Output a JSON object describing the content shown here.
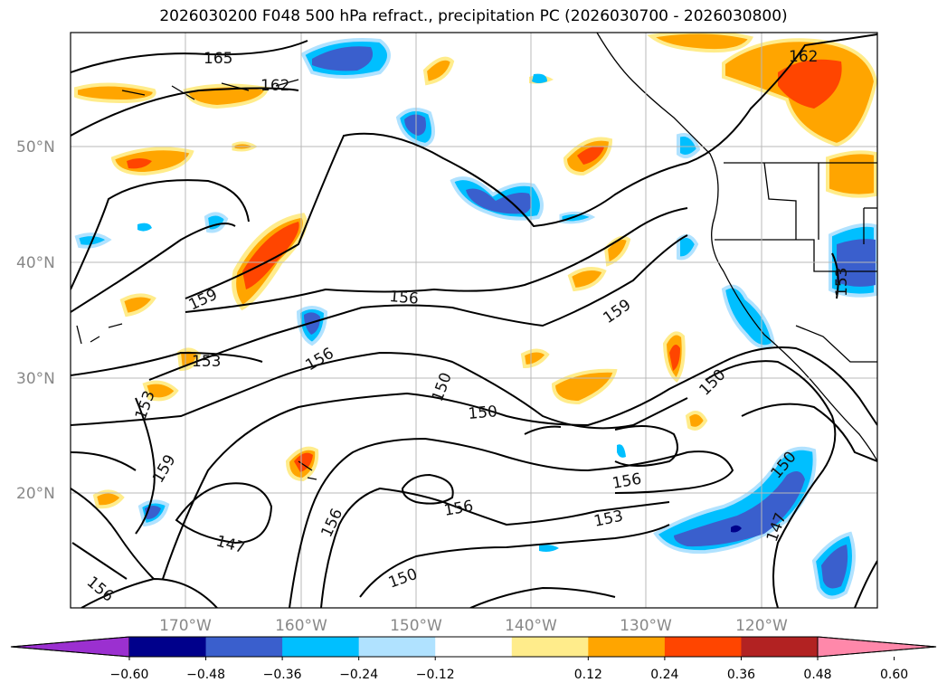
{
  "title": "2026030200 F048 500 hPa refract., precipitation PC (2026030700 - 2026030800)",
  "lat_labels": [
    "50°N",
    "40°N",
    "30°N",
    "20°N"
  ],
  "lon_labels": [
    "170°W",
    "160°W",
    "150°W",
    "140°W",
    "130°W",
    "120°W"
  ],
  "contour_labels": [
    "165",
    "162",
    "162",
    "159",
    "159",
    "159",
    "156",
    "156",
    "156",
    "156",
    "156",
    "156",
    "153",
    "153",
    "153",
    "153",
    "150",
    "150",
    "150",
    "150",
    "150",
    "147",
    "147"
  ],
  "colorbar": {
    "ticks": [
      "−0.60",
      "−0.48",
      "−0.36",
      "−0.24",
      "−0.12",
      "0.12",
      "0.24",
      "0.36",
      "0.48",
      "0.60"
    ],
    "colors": [
      "#9b30d0",
      "#00008b",
      "#3a5fcd",
      "#00bfff",
      "#b0e2ff",
      "#ffffff",
      "#ffec8b",
      "#ffa500",
      "#ff4500",
      "#b22222",
      "#ff88aa"
    ]
  }
}
